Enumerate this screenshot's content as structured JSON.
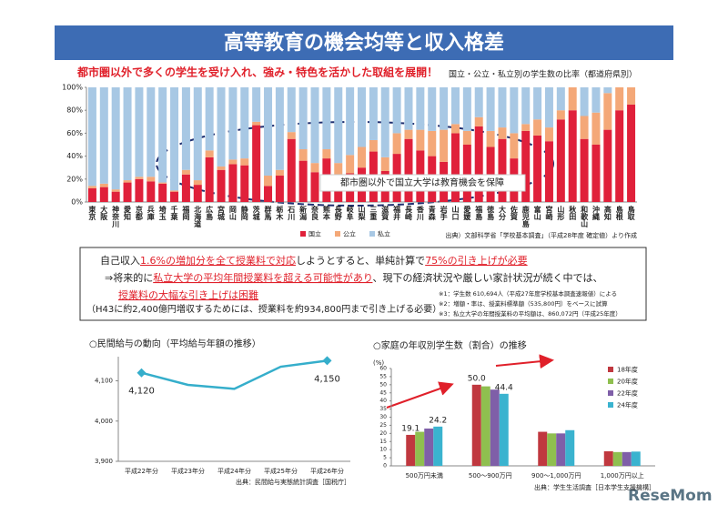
{
  "header": {
    "title": "高等教育の機会均等と収入格差",
    "subtitle": "都市圏以外で多くの学生を受け入れ、強み・特色を活かした取組を展開！"
  },
  "box": {
    "lines": [
      [
        {
          "text": "自己収入",
          "emph": false
        },
        {
          "text": "1.6%の増加分を全て授業料で対応",
          "emph": true
        },
        {
          "text": "しようとすると、単純計算で",
          "emph": false
        },
        {
          "text": "75%の引き上げが必要",
          "emph": true
        }
      ],
      [
        {
          "text": "⇒将来的に",
          "emph": false
        },
        {
          "text": "私立大学の平均年間授業料を超える可能性があり",
          "emph": true
        },
        {
          "text": "、現下の経済状況や厳しい家計状況が続く中では、",
          "emph": false
        }
      ],
      [
        {
          "text": "授業料の大幅な引き上げは困難",
          "emph": true
        }
      ],
      [
        {
          "text": "（H43に約2,400億円増収するためには、授業料を約934,800円まで引き上げる必要）",
          "emph": false
        }
      ]
    ],
    "notes": [
      "※1：学生数 610,694人（平成27年度学校基本調査速報値）による",
      "※2：増額・率は、授業料標準額（535,800円）をベースに試算",
      "※3：私立大学の年間授業料の平均額は、860,072円（平成25年度）"
    ]
  },
  "logo": "ReseMom",
  "chart_data": [
    {
      "type": "stacked-bar",
      "title": "国立・公立・私立別の学生数の比率（都道府県別）",
      "annotation": "都市圏以外で国立大学は教育機会を保障",
      "source": "出典）文部科学省「学校基本調査」（平成28年度 確定値）より作成",
      "categories": [
        "東京",
        "大阪",
        "神奈川",
        "愛知",
        "京都",
        "兵庫",
        "埼玉",
        "千葉",
        "福岡",
        "北海道",
        "広島",
        "宮城",
        "岡山",
        "静岡",
        "茨城",
        "群馬",
        "栃木",
        "石川",
        "新潟",
        "奈良",
        "熊本",
        "長野",
        "岐阜",
        "山梨",
        "三重",
        "滋賀",
        "福井",
        "長崎",
        "香川",
        "青森",
        "岩手",
        "山口",
        "愛媛",
        "福島",
        "徳島",
        "大分",
        "佐賀",
        "鹿児島",
        "富山",
        "宮崎",
        "山形",
        "秋田",
        "和歌山",
        "沖縄",
        "高知",
        "島根",
        "鳥取"
      ],
      "series": [
        {
          "name": "国立",
          "color": "#e0203a",
          "values": [
            12,
            13,
            9,
            17,
            20,
            18,
            16,
            9,
            24,
            15,
            39,
            28,
            33,
            32,
            67,
            14,
            23,
            55,
            36,
            26,
            38,
            19,
            25,
            30,
            44,
            27,
            42,
            55,
            45,
            40,
            35,
            60,
            50,
            66,
            48,
            55,
            38,
            62,
            58,
            53,
            72,
            80,
            55,
            50,
            63,
            80,
            85
          ]
        },
        {
          "name": "公立",
          "color": "#f4a878",
          "values": [
            2,
            3,
            2,
            2,
            2,
            4,
            1,
            1,
            4,
            4,
            6,
            3,
            4,
            6,
            3,
            9,
            5,
            6,
            10,
            8,
            8,
            15,
            16,
            18,
            10,
            12,
            18,
            8,
            18,
            22,
            28,
            8,
            12,
            8,
            14,
            10,
            22,
            6,
            14,
            12,
            8,
            20,
            20,
            28,
            32,
            20,
            15
          ]
        },
        {
          "name": "私立",
          "color": "#a8c8e4",
          "values": [
            86,
            84,
            89,
            81,
            78,
            78,
            83,
            90,
            72,
            81,
            55,
            69,
            63,
            62,
            30,
            77,
            72,
            39,
            54,
            66,
            54,
            66,
            59,
            52,
            46,
            61,
            40,
            37,
            37,
            38,
            37,
            32,
            38,
            26,
            38,
            35,
            40,
            32,
            28,
            35,
            20,
            0,
            25,
            22,
            5,
            0,
            0
          ]
        }
      ],
      "ylim": [
        0,
        100
      ],
      "yticks": [
        {
          "value": 0,
          "label": "0%"
        },
        {
          "value": 20,
          "label": "20%"
        },
        {
          "value": 40,
          "label": "40%"
        },
        {
          "value": 60,
          "label": "60%"
        },
        {
          "value": 80,
          "label": "80%"
        },
        {
          "value": 100,
          "label": "100%"
        }
      ],
      "grid": false
    },
    {
      "type": "line",
      "title": "○民間給与の動向（平均給与年額の推移）",
      "source": "出典：民間給与実態統計調査［国税庁］",
      "categories": [
        "平成22年分",
        "平成23年分",
        "平成24年分",
        "平成25年分",
        "平成26年分"
      ],
      "values": [
        4120,
        4090,
        4080,
        4135,
        4150
      ],
      "value_labels": [
        "4,120",
        null,
        null,
        null,
        "4,150"
      ],
      "color": "#35aecb",
      "ylim": [
        3900,
        4160
      ],
      "yticks": [
        {
          "value": 3900,
          "label": "3,900"
        },
        {
          "value": 4000,
          "label": "4,000"
        },
        {
          "value": 4100,
          "label": "4,100"
        }
      ],
      "grid": false
    },
    {
      "type": "grouped-bar",
      "title": "○家庭の年収別学生数（割合）の推移",
      "ylabel": "(%)",
      "source": "出典：学生生活調査［日本学生支援機構］",
      "categories": [
        "500万円未満",
        "500～900万円",
        "900～1,000万円",
        "1,000万円以上"
      ],
      "series": [
        {
          "name": "18年度",
          "color": "#c0383f",
          "values": [
            19.1,
            50,
            21,
            9
          ],
          "value_labels": [
            "19.1",
            "50.0",
            null,
            null
          ]
        },
        {
          "name": "20年度",
          "color": "#8fbf4f",
          "values": [
            21,
            49,
            20,
            8.5
          ]
        },
        {
          "name": "22年度",
          "color": "#7f5fa8",
          "values": [
            23,
            47,
            20,
            8.5
          ]
        },
        {
          "name": "24年度",
          "color": "#3ab3cf",
          "values": [
            24.2,
            44.4,
            22,
            8.8
          ],
          "value_labels": [
            "24.2",
            "44.4",
            null,
            null
          ]
        }
      ],
      "ylim": [
        0,
        60
      ],
      "yticks": [
        0,
        5,
        10,
        15,
        20,
        25,
        30,
        35,
        40,
        45,
        50,
        55,
        60
      ],
      "grid": false
    }
  ]
}
